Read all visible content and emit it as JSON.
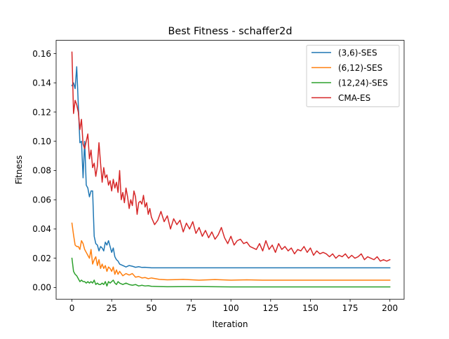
{
  "chart_data": {
    "type": "line",
    "title": "Best Fitness - schaffer2d",
    "xlabel": "Iteration",
    "ylabel": "Fitness",
    "xlim": [
      -9.95,
      208.95
    ],
    "ylim": [
      -0.00805,
      0.16905
    ],
    "xticks": [
      0,
      25,
      50,
      75,
      100,
      125,
      150,
      175,
      200
    ],
    "xtick_labels": [
      "0",
      "25",
      "50",
      "75",
      "100",
      "125",
      "150",
      "175",
      "200"
    ],
    "yticks": [
      0.0,
      0.02,
      0.04,
      0.06,
      0.08,
      0.1,
      0.12,
      0.14,
      0.16
    ],
    "ytick_labels": [
      "0.00",
      "0.02",
      "0.04",
      "0.06",
      "0.08",
      "0.10",
      "0.12",
      "0.14",
      "0.16"
    ],
    "grid": false,
    "legend_position": "top-right",
    "series": [
      {
        "name": "(3,6)-SES",
        "color": "#1f77b4",
        "points": [
          [
            0,
            0.138
          ],
          [
            1,
            0.14
          ],
          [
            2,
            0.136
          ],
          [
            3,
            0.151
          ],
          [
            4,
            0.125
          ],
          [
            5,
            0.099
          ],
          [
            6,
            0.1
          ],
          [
            7,
            0.075
          ],
          [
            8,
            0.1
          ],
          [
            9,
            0.07
          ],
          [
            10,
            0.068
          ],
          [
            11,
            0.062
          ],
          [
            12,
            0.066
          ],
          [
            13,
            0.066
          ],
          [
            14,
            0.035
          ],
          [
            15,
            0.03
          ],
          [
            16,
            0.029
          ],
          [
            17,
            0.025
          ],
          [
            18,
            0.028
          ],
          [
            19,
            0.027
          ],
          [
            20,
            0.025
          ],
          [
            21,
            0.031
          ],
          [
            22,
            0.029
          ],
          [
            23,
            0.032
          ],
          [
            24,
            0.028
          ],
          [
            25,
            0.024
          ],
          [
            26,
            0.027
          ],
          [
            27,
            0.021
          ],
          [
            28,
            0.019
          ],
          [
            29,
            0.018
          ],
          [
            30,
            0.016
          ],
          [
            32,
            0.015
          ],
          [
            34,
            0.014
          ],
          [
            36,
            0.015
          ],
          [
            38,
            0.0145
          ],
          [
            40,
            0.0138
          ],
          [
            42,
            0.0142
          ],
          [
            44,
            0.0137
          ],
          [
            46,
            0.0138
          ],
          [
            50,
            0.0134
          ],
          [
            60,
            0.0134
          ],
          [
            200,
            0.0134
          ]
        ]
      },
      {
        "name": "(6,12)-SES",
        "color": "#ff7f0e",
        "points": [
          [
            0,
            0.044
          ],
          [
            1,
            0.036
          ],
          [
            2,
            0.029
          ],
          [
            3,
            0.028
          ],
          [
            4,
            0.028
          ],
          [
            5,
            0.026
          ],
          [
            6,
            0.032
          ],
          [
            7,
            0.03
          ],
          [
            8,
            0.026
          ],
          [
            9,
            0.024
          ],
          [
            10,
            0.022
          ],
          [
            11,
            0.02
          ],
          [
            12,
            0.026
          ],
          [
            13,
            0.016
          ],
          [
            14,
            0.019
          ],
          [
            15,
            0.021
          ],
          [
            16,
            0.015
          ],
          [
            17,
            0.019
          ],
          [
            18,
            0.013
          ],
          [
            19,
            0.016
          ],
          [
            20,
            0.013
          ],
          [
            21,
            0.015
          ],
          [
            22,
            0.011
          ],
          [
            23,
            0.014
          ],
          [
            24,
            0.013
          ],
          [
            25,
            0.011
          ],
          [
            26,
            0.014
          ],
          [
            27,
            0.009
          ],
          [
            28,
            0.012
          ],
          [
            29,
            0.009
          ],
          [
            30,
            0.011
          ],
          [
            32,
            0.008
          ],
          [
            34,
            0.0095
          ],
          [
            36,
            0.0085
          ],
          [
            38,
            0.0095
          ],
          [
            40,
            0.007
          ],
          [
            42,
            0.0075
          ],
          [
            44,
            0.0065
          ],
          [
            46,
            0.0068
          ],
          [
            48,
            0.006
          ],
          [
            50,
            0.0065
          ],
          [
            55,
            0.0055
          ],
          [
            60,
            0.0052
          ],
          [
            70,
            0.0055
          ],
          [
            80,
            0.005
          ],
          [
            90,
            0.0054
          ],
          [
            100,
            0.005
          ],
          [
            110,
            0.0052
          ],
          [
            120,
            0.005
          ],
          [
            200,
            0.005
          ]
        ]
      },
      {
        "name": "(12,24)-SES",
        "color": "#2ca02c",
        "points": [
          [
            0,
            0.02
          ],
          [
            1,
            0.011
          ],
          [
            2,
            0.009
          ],
          [
            3,
            0.008
          ],
          [
            4,
            0.006
          ],
          [
            5,
            0.004
          ],
          [
            6,
            0.005
          ],
          [
            7,
            0.004
          ],
          [
            8,
            0.004
          ],
          [
            9,
            0.003
          ],
          [
            10,
            0.004
          ],
          [
            11,
            0.003
          ],
          [
            12,
            0.004
          ],
          [
            13,
            0.003
          ],
          [
            14,
            0.005
          ],
          [
            15,
            0.002
          ],
          [
            16,
            0.003
          ],
          [
            17,
            0.002
          ],
          [
            18,
            0.002
          ],
          [
            19,
            0.003
          ],
          [
            20,
            0.002
          ],
          [
            21,
            0.004
          ],
          [
            22,
            0.001
          ],
          [
            23,
            0.004
          ],
          [
            24,
            0.003
          ],
          [
            25,
            0.004
          ],
          [
            26,
            0.005
          ],
          [
            27,
            0.003
          ],
          [
            28,
            0.002
          ],
          [
            29,
            0.004
          ],
          [
            30,
            0.003
          ],
          [
            32,
            0.002
          ],
          [
            34,
            0.003
          ],
          [
            36,
            0.002
          ],
          [
            38,
            0.0015
          ],
          [
            40,
            0.002
          ],
          [
            42,
            0.001
          ],
          [
            44,
            0.0015
          ],
          [
            46,
            0.001
          ],
          [
            48,
            0.0012
          ],
          [
            50,
            0.0008
          ],
          [
            55,
            0.0006
          ],
          [
            60,
            0.0005
          ],
          [
            80,
            0.0006
          ],
          [
            100,
            0.0004
          ],
          [
            200,
            0.0004
          ]
        ]
      },
      {
        "name": "CMA-ES",
        "color": "#d62728",
        "points": [
          [
            0,
            0.161
          ],
          [
            1,
            0.119
          ],
          [
            2,
            0.128
          ],
          [
            3,
            0.125
          ],
          [
            4,
            0.12
          ],
          [
            5,
            0.108
          ],
          [
            6,
            0.115
          ],
          [
            7,
            0.098
          ],
          [
            8,
            0.095
          ],
          [
            9,
            0.1
          ],
          [
            10,
            0.105
          ],
          [
            11,
            0.088
          ],
          [
            12,
            0.094
          ],
          [
            13,
            0.082
          ],
          [
            14,
            0.085
          ],
          [
            15,
            0.076
          ],
          [
            16,
            0.083
          ],
          [
            17,
            0.099
          ],
          [
            18,
            0.085
          ],
          [
            19,
            0.072
          ],
          [
            20,
            0.082
          ],
          [
            21,
            0.075
          ],
          [
            22,
            0.077
          ],
          [
            23,
            0.07
          ],
          [
            24,
            0.073
          ],
          [
            25,
            0.066
          ],
          [
            26,
            0.074
          ],
          [
            27,
            0.068
          ],
          [
            28,
            0.072
          ],
          [
            29,
            0.065
          ],
          [
            30,
            0.08
          ],
          [
            31,
            0.06
          ],
          [
            32,
            0.065
          ],
          [
            33,
            0.058
          ],
          [
            34,
            0.068
          ],
          [
            35,
            0.062
          ],
          [
            36,
            0.054
          ],
          [
            37,
            0.06
          ],
          [
            38,
            0.056
          ],
          [
            39,
            0.066
          ],
          [
            40,
            0.062
          ],
          [
            41,
            0.05
          ],
          [
            42,
            0.058
          ],
          [
            43,
            0.059
          ],
          [
            44,
            0.057
          ],
          [
            45,
            0.063
          ],
          [
            46,
            0.055
          ],
          [
            47,
            0.058
          ],
          [
            48,
            0.05
          ],
          [
            49,
            0.054
          ],
          [
            50,
            0.048
          ],
          [
            52,
            0.043
          ],
          [
            54,
            0.046
          ],
          [
            56,
            0.052
          ],
          [
            58,
            0.045
          ],
          [
            60,
            0.049
          ],
          [
            62,
            0.04
          ],
          [
            64,
            0.047
          ],
          [
            66,
            0.043
          ],
          [
            68,
            0.046
          ],
          [
            70,
            0.038
          ],
          [
            72,
            0.044
          ],
          [
            74,
            0.04
          ],
          [
            76,
            0.045
          ],
          [
            78,
            0.037
          ],
          [
            80,
            0.041
          ],
          [
            82,
            0.035
          ],
          [
            84,
            0.039
          ],
          [
            86,
            0.034
          ],
          [
            88,
            0.038
          ],
          [
            90,
            0.033
          ],
          [
            92,
            0.036
          ],
          [
            94,
            0.041
          ],
          [
            96,
            0.034
          ],
          [
            98,
            0.03
          ],
          [
            100,
            0.035
          ],
          [
            102,
            0.029
          ],
          [
            104,
            0.032
          ],
          [
            106,
            0.033
          ],
          [
            108,
            0.03
          ],
          [
            110,
            0.031
          ],
          [
            112,
            0.028
          ],
          [
            114,
            0.027
          ],
          [
            116,
            0.026
          ],
          [
            118,
            0.03
          ],
          [
            120,
            0.025
          ],
          [
            122,
            0.032
          ],
          [
            124,
            0.026
          ],
          [
            126,
            0.029
          ],
          [
            128,
            0.024
          ],
          [
            130,
            0.03
          ],
          [
            132,
            0.026
          ],
          [
            134,
            0.028
          ],
          [
            136,
            0.025
          ],
          [
            138,
            0.027
          ],
          [
            140,
            0.023
          ],
          [
            142,
            0.026
          ],
          [
            144,
            0.025
          ],
          [
            146,
            0.028
          ],
          [
            148,
            0.024
          ],
          [
            150,
            0.027
          ],
          [
            152,
            0.022
          ],
          [
            154,
            0.025
          ],
          [
            156,
            0.023
          ],
          [
            158,
            0.024
          ],
          [
            160,
            0.023
          ],
          [
            162,
            0.021
          ],
          [
            164,
            0.023
          ],
          [
            166,
            0.02
          ],
          [
            168,
            0.022
          ],
          [
            170,
            0.021
          ],
          [
            172,
            0.023
          ],
          [
            174,
            0.02
          ],
          [
            176,
            0.022
          ],
          [
            178,
            0.02
          ],
          [
            180,
            0.021
          ],
          [
            182,
            0.023
          ],
          [
            184,
            0.019
          ],
          [
            186,
            0.021
          ],
          [
            188,
            0.02
          ],
          [
            190,
            0.019
          ],
          [
            192,
            0.021
          ],
          [
            194,
            0.018
          ],
          [
            196,
            0.019
          ],
          [
            198,
            0.018
          ],
          [
            200,
            0.019
          ]
        ]
      }
    ]
  }
}
